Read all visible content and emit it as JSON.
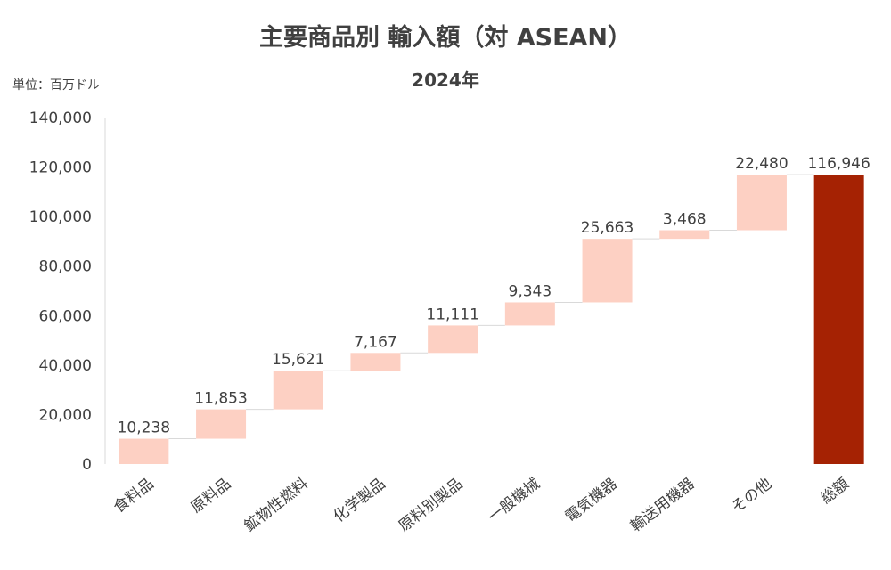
{
  "title": "主要商品別 輸入額（対 ASEAN）",
  "subtitle": "2024年",
  "unit_label": "単位：百万ドル",
  "colors": {
    "step_fill": "#fdd0c3",
    "total_fill": "#a52203",
    "connector": "#d9d9d9",
    "axis": "#d9d9d9",
    "text": "#404040"
  },
  "chart_data": {
    "type": "bar",
    "subtype": "waterfall",
    "title": "主要商品別 輸入額（対 ASEAN）",
    "subtitle": "2024年",
    "ylabel": "単位：百万ドル",
    "ylim": [
      0,
      140000
    ],
    "yticks": [
      0,
      20000,
      40000,
      60000,
      80000,
      100000,
      120000,
      140000
    ],
    "ytick_labels": [
      "0",
      "20,000",
      "40,000",
      "60,000",
      "80,000",
      "100,000",
      "120,000",
      "140,000"
    ],
    "grid": false,
    "legend": "none",
    "categories": [
      "食料品",
      "原料品",
      "鉱物性燃料",
      "化学製品",
      "原料別製品",
      "一般機械",
      "電気機器",
      "輸送用機器",
      "その他",
      "総額"
    ],
    "values": [
      10238,
      11853,
      15621,
      7167,
      11111,
      9343,
      25663,
      3468,
      22480,
      116946
    ],
    "value_labels": [
      "10,238",
      "11,853",
      "15,621",
      "7,167",
      "11,111",
      "9,343",
      "25,663",
      "3,468",
      "22,480",
      "116,946"
    ],
    "is_total": [
      false,
      false,
      false,
      false,
      false,
      false,
      false,
      false,
      false,
      true
    ]
  }
}
